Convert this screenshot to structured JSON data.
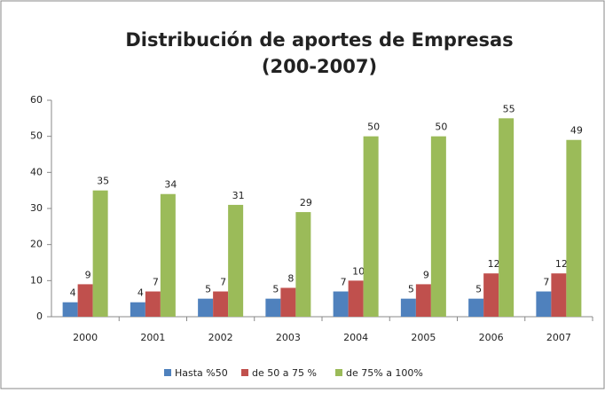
{
  "chart_data": {
    "type": "bar",
    "title": [
      "Distribución de aportes de Empresas",
      "(200-2007)"
    ],
    "categories": [
      "2000",
      "2001",
      "2002",
      "2003",
      "2004",
      "2005",
      "2006",
      "2007"
    ],
    "series": [
      {
        "name": "Hasta %50",
        "color": "#4f81bd",
        "values": [
          4,
          4,
          5,
          5,
          7,
          5,
          5,
          7
        ]
      },
      {
        "name": "de 50 a 75 %",
        "color": "#c0504d",
        "values": [
          9,
          7,
          7,
          8,
          10,
          9,
          12,
          12
        ]
      },
      {
        "name": "de 75% a 100%",
        "color": "#9bbb59",
        "values": [
          35,
          34,
          31,
          29,
          50,
          50,
          55,
          49
        ]
      }
    ],
    "ylim": [
      0,
      60
    ],
    "yticks": [
      0,
      10,
      20,
      30,
      40,
      50,
      60
    ],
    "grid": false,
    "legend": "bottom"
  }
}
